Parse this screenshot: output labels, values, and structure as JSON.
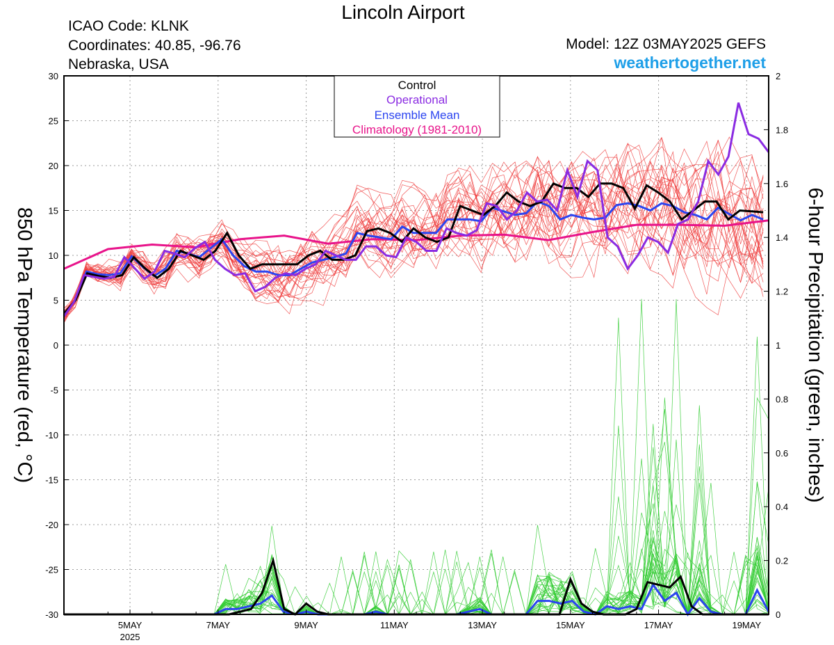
{
  "header": {
    "title": "Lincoln Airport",
    "icao": "ICAO Code: KLNK",
    "coordinates": "Coordinates: 40.85, -96.76",
    "region": "Nebraska, USA",
    "model": "Model: 12Z 03MAY2025 GEFS",
    "site": "weathertogether.net"
  },
  "colors": {
    "members_temp": "#ee3b3b",
    "members_precip": "#33cc33",
    "control": "#000000",
    "operational": "#8a2be2",
    "ensemble_mean": "#2b44f0",
    "climatology": "#e8138a",
    "site": "#1e9fe8"
  },
  "chart_data": {
    "type": "line",
    "title": "Lincoln Airport",
    "xlabel": "",
    "ylabel_left": "850 hPa Temperature (red, °C)",
    "ylabel_right": "6-hour Precipitation (green, inches)",
    "x_start": "2025-05-03 12Z",
    "x_step_hours": 6,
    "x_ticks": [
      {
        "label": "5MAY",
        "sub": "2025",
        "x": 6
      },
      {
        "label": "7MAY",
        "sub": "",
        "x": 14
      },
      {
        "label": "9MAY",
        "sub": "",
        "x": 22
      },
      {
        "label": "11MAY",
        "sub": "",
        "x": 30
      },
      {
        "label": "13MAY",
        "sub": "",
        "x": 38
      },
      {
        "label": "15MAY",
        "sub": "",
        "x": 46
      },
      {
        "label": "17MAY",
        "sub": "",
        "x": 54
      },
      {
        "label": "19MAY",
        "sub": "",
        "x": 62
      }
    ],
    "xlim": [
      0,
      64
    ],
    "ylim_left": [
      -30,
      30
    ],
    "yticks_left": [
      "30",
      "25",
      "20",
      "15",
      "10",
      "5",
      "0",
      "-5",
      "-10",
      "-15",
      "-20",
      "-25",
      "-30"
    ],
    "ylim_right": [
      0,
      2
    ],
    "yticks_right": [
      "2",
      "1.8",
      "1.6",
      "1.4",
      "1.2",
      "1",
      "0.8",
      "0.6",
      "0.4",
      "0.2",
      "0"
    ],
    "grid": true,
    "legend": {
      "placement": "top-center",
      "entries": [
        "Control",
        "Operational",
        "Ensemble Mean",
        "Climatology (1981-2010)"
      ]
    },
    "climatology": [
      {
        "x": 0,
        "y": 8.5
      },
      {
        "x": 4,
        "y": 10.7
      },
      {
        "x": 8,
        "y": 11.2
      },
      {
        "x": 12,
        "y": 10.9
      },
      {
        "x": 16,
        "y": 11.8
      },
      {
        "x": 20,
        "y": 12.2
      },
      {
        "x": 24,
        "y": 11.3
      },
      {
        "x": 28,
        "y": 11.8
      },
      {
        "x": 32,
        "y": 11.7
      },
      {
        "x": 36,
        "y": 12.2
      },
      {
        "x": 40,
        "y": 12.3
      },
      {
        "x": 44,
        "y": 11.7
      },
      {
        "x": 48,
        "y": 12.6
      },
      {
        "x": 52,
        "y": 13.4
      },
      {
        "x": 56,
        "y": 13.4
      },
      {
        "x": 60,
        "y": 13.3
      },
      {
        "x": 64,
        "y": 13.9
      }
    ],
    "control_temp": [
      3.5,
      5,
      8,
      7.7,
      7.5,
      7.8,
      9.8,
      8.5,
      7.5,
      8.5,
      10.5,
      10,
      9.5,
      10.5,
      12.5,
      10,
      8.5,
      9,
      9,
      9,
      9,
      10,
      10.5,
      9.5,
      9.5,
      10,
      12.7,
      13,
      12.5,
      11.5,
      13,
      12,
      11.5,
      12,
      15.5,
      15,
      14.5,
      15.5,
      17,
      16,
      15.5,
      16,
      18,
      17.5,
      17.5,
      16.5,
      18,
      18,
      17.5,
      15.2,
      17.8,
      17,
      16,
      14,
      15,
      16,
      16,
      14,
      15,
      14.9,
      14.8
    ],
    "operational_temp": [
      3.2,
      4.8,
      7.8,
      7.6,
      7.4,
      7.6,
      9.8,
      8.6,
      7.4,
      8.2,
      10.5,
      10.2,
      9.8,
      10.8,
      11.5,
      9.5,
      8.5,
      7.8,
      8,
      6,
      6.5,
      7.5,
      8,
      7.8,
      8.5,
      9,
      10.5,
      10,
      9.5,
      9.5,
      11,
      11,
      10,
      9.8,
      12,
      11.5,
      10.5,
      10.5,
      13,
      12.5,
      12.2,
      12.8,
      15.8,
      15.5,
      14,
      15,
      17,
      16,
      16.2,
      15,
      19.5,
      16.5,
      20.5,
      19.5,
      12,
      11,
      8.5,
      10,
      12,
      11.5,
      10.3,
      13.5,
      14,
      16,
      20.5,
      19,
      21,
      27,
      23.5,
      23,
      21.5
    ],
    "mean_temp": [
      3.3,
      5,
      8.2,
      7.9,
      7.8,
      8,
      9.9,
      8.7,
      7.7,
      8.5,
      10.5,
      10.2,
      9.8,
      10.8,
      11.8,
      10,
      8.8,
      8.2,
      8.2,
      7.8,
      7.8,
      8.5,
      9.2,
      9.5,
      9.8,
      10.2,
      12.5,
      12.2,
      12,
      11.8,
      13.2,
      12.5,
      12.5,
      12.5,
      14,
      14,
      14,
      13.8,
      15.3,
      14.9,
      14.5,
      14.7,
      16,
      15.5,
      14,
      14.5,
      14.2,
      14,
      14.2,
      15.6,
      15.8,
      15.5,
      15,
      15.8,
      15.5,
      14.8,
      14.5,
      14,
      15.3,
      14.6,
      13.9,
      14.5,
      14
    ],
    "control_precip": [
      0,
      0,
      0,
      0,
      0,
      0,
      0,
      0,
      0,
      0,
      0,
      0,
      0,
      0,
      0,
      0,
      0.01,
      0.02,
      0.08,
      0.2,
      0.02,
      0,
      0.04,
      0.01,
      0,
      0,
      0,
      0,
      0,
      0,
      0,
      0,
      0,
      0,
      0,
      0,
      0,
      0,
      0,
      0,
      0,
      0,
      0,
      0,
      0,
      0,
      0.13,
      0.04,
      0.01,
      0,
      0,
      0,
      0.02,
      0.12,
      0.11,
      0.1,
      0.14,
      0.03,
      0,
      0,
      0,
      0,
      0,
      0,
      0
    ],
    "mean_precip": [
      0,
      0,
      0,
      0,
      0,
      0,
      0,
      0,
      0,
      0,
      0,
      0,
      0,
      0,
      0.02,
      0.02,
      0.03,
      0.04,
      0.07,
      0.01,
      0,
      0.01,
      0,
      0,
      0,
      0,
      0,
      0.01,
      0,
      0,
      0,
      0,
      0,
      0,
      0,
      0.01,
      0.02,
      0,
      0,
      0,
      0,
      0.05,
      0.05,
      0.04,
      0.05,
      0.01,
      0,
      0.03,
      0.02,
      0.03,
      0.02,
      0.11,
      0.05,
      0.08,
      0,
      0.06,
      0.01,
      0,
      0,
      0,
      0.09,
      0.01
    ]
  }
}
